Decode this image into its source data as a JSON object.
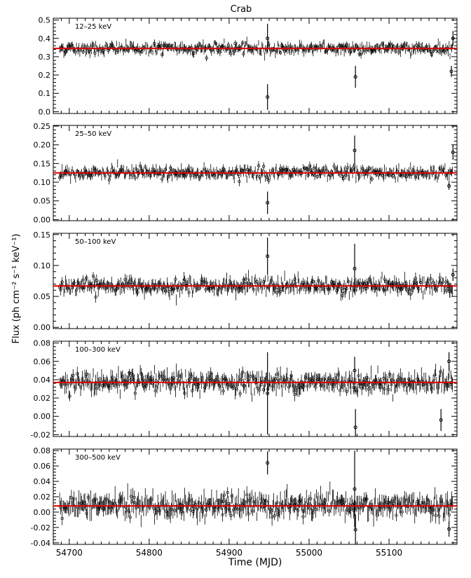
{
  "figure": {
    "title": "Crab",
    "ylabel": "Flux (ph cm⁻² s⁻¹ keV⁻¹)",
    "xlabel": "Time (MJD)",
    "colors": {
      "points": "#000000",
      "fit_line": "#e00000",
      "axes": "#000000"
    }
  },
  "chart_data": [
    {
      "type": "scatter",
      "label": "12–25 keV",
      "xlim": [
        54680,
        55185
      ],
      "ylim": [
        -0.01,
        0.51
      ],
      "xticks": [
        54700,
        54800,
        54900,
        55000,
        55100
      ],
      "yticks": [
        0.0,
        0.1,
        0.2,
        0.3,
        0.4,
        0.5
      ],
      "ytick_labels": [
        "0.0",
        "0.1",
        "0.2",
        "0.3",
        "0.4",
        "0.5"
      ],
      "fit_value": 0.345,
      "noise": 0.015,
      "series_description_note": "",
      "outliers": [
        {
          "x": 54948,
          "y": 0.08,
          "err": 0.07
        },
        {
          "x": 54948,
          "y": 0.4,
          "err": 0.08
        },
        {
          "x": 55058,
          "y": 0.19,
          "err": 0.06
        },
        {
          "x": 55178,
          "y": 0.22,
          "err": 0.03
        },
        {
          "x": 55180,
          "y": 0.4,
          "err": 0.04
        }
      ],
      "x_tick_labels_visible": false
    },
    {
      "type": "scatter",
      "label": "25–50 keV",
      "xlim": [
        54680,
        55185
      ],
      "ylim": [
        -0.003,
        0.252
      ],
      "xticks": [
        54700,
        54800,
        54900,
        55000,
        55100
      ],
      "yticks": [
        0.0,
        0.05,
        0.1,
        0.15,
        0.2,
        0.25
      ],
      "ytick_labels": [
        "0.00",
        "0.05",
        "0.10",
        "0.15",
        "0.20",
        "0.25"
      ],
      "fit_value": 0.125,
      "noise": 0.008,
      "outliers": [
        {
          "x": 54948,
          "y": 0.045,
          "err": 0.03
        },
        {
          "x": 55057,
          "y": 0.185,
          "err": 0.04
        },
        {
          "x": 55175,
          "y": 0.09,
          "err": 0.01
        },
        {
          "x": 55180,
          "y": 0.18,
          "err": 0.02
        }
      ],
      "x_tick_labels_visible": false
    },
    {
      "type": "scatter",
      "label": "50–100 keV",
      "xlim": [
        54680,
        55185
      ],
      "ylim": [
        -0.002,
        0.152
      ],
      "xticks": [
        54700,
        54800,
        54900,
        55000,
        55100
      ],
      "yticks": [
        0.0,
        0.05,
        0.1,
        0.15
      ],
      "ytick_labels": [
        "0.00",
        "0.05",
        "0.10",
        "0.15"
      ],
      "fit_value": 0.067,
      "noise": 0.006,
      "outliers": [
        {
          "x": 54948,
          "y": 0.115,
          "err": 0.03
        },
        {
          "x": 55057,
          "y": 0.095,
          "err": 0.04
        },
        {
          "x": 55176,
          "y": 0.058,
          "err": 0.01
        },
        {
          "x": 55180,
          "y": 0.085,
          "err": 0.01
        }
      ],
      "x_tick_labels_visible": false
    },
    {
      "type": "scatter",
      "label": "100–300 keV",
      "xlim": [
        54680,
        55185
      ],
      "ylim": [
        -0.022,
        0.082
      ],
      "xticks": [
        54700,
        54800,
        54900,
        55000,
        55100
      ],
      "yticks": [
        -0.02,
        0.0,
        0.02,
        0.04,
        0.06,
        0.08
      ],
      "ytick_labels": [
        "-0.02",
        "0.00",
        "0.02",
        "0.04",
        "0.06",
        "0.08"
      ],
      "fit_value": 0.037,
      "noise": 0.005,
      "outliers": [
        {
          "x": 54948,
          "y": 0.025,
          "err": 0.045
        },
        {
          "x": 55057,
          "y": 0.05,
          "err": 0.015
        },
        {
          "x": 55058,
          "y": -0.012,
          "err": 0.02
        },
        {
          "x": 55165,
          "y": -0.004,
          "err": 0.012
        },
        {
          "x": 55175,
          "y": 0.06,
          "err": 0.01
        }
      ],
      "x_tick_labels_visible": false
    },
    {
      "type": "scatter",
      "label": "300–500 keV",
      "xlim": [
        54680,
        55185
      ],
      "ylim": [
        -0.042,
        0.082
      ],
      "xticks": [
        54700,
        54800,
        54900,
        55000,
        55100
      ],
      "xtick_labels": [
        "54700",
        "54800",
        "54900",
        "55000",
        "55100"
      ],
      "yticks": [
        -0.04,
        -0.02,
        0.0,
        0.02,
        0.04,
        0.06,
        0.08
      ],
      "ytick_labels": [
        "-0.04",
        "-0.02",
        "0.00",
        "0.02",
        "0.04",
        "0.06",
        "0.08"
      ],
      "fit_value": 0.008,
      "noise": 0.007,
      "outliers": [
        {
          "x": 54948,
          "y": 0.064,
          "err": 0.015
        },
        {
          "x": 55057,
          "y": 0.03,
          "err": 0.05
        },
        {
          "x": 55058,
          "y": -0.023,
          "err": 0.02
        },
        {
          "x": 55175,
          "y": -0.022,
          "err": 0.01
        }
      ],
      "x_tick_labels_visible": true
    }
  ]
}
